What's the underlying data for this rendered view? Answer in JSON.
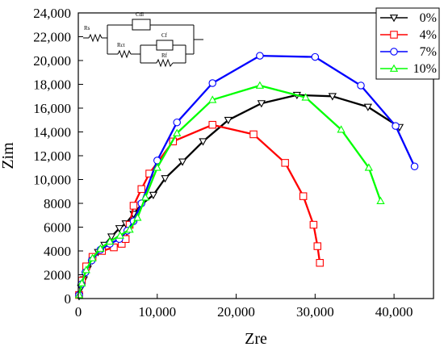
{
  "chart_data": {
    "type": "line",
    "title": "",
    "xlabel": "Zre",
    "ylabel": "Zim",
    "xlim": [
      0,
      45000
    ],
    "ylim": [
      0,
      24000
    ],
    "x_ticks": [
      0,
      10000,
      20000,
      30000,
      40000
    ],
    "x_tick_labels": [
      "0",
      "10,000",
      "20,000",
      "30,000",
      "40,000"
    ],
    "y_ticks": [
      0,
      2000,
      4000,
      6000,
      8000,
      10000,
      12000,
      14000,
      16000,
      18000,
      20000,
      22000,
      24000
    ],
    "y_tick_labels": [
      "0",
      "2000",
      "4000",
      "6000",
      "8000",
      "10,000",
      "12,000",
      "14,000",
      "16,000",
      "18,000",
      "20,000",
      "22,000",
      "24,000"
    ],
    "grid": false,
    "legend_position": "top-right",
    "series": [
      {
        "name": "0%",
        "color": "#000000",
        "marker": "triangle-down",
        "points": [
          [
            100,
            200
          ],
          [
            350,
            900
          ],
          [
            700,
            1600
          ],
          [
            1200,
            2500
          ],
          [
            1800,
            3200
          ],
          [
            2500,
            3900
          ],
          [
            3300,
            4500
          ],
          [
            4200,
            5200
          ],
          [
            5200,
            5900
          ],
          [
            6000,
            6300
          ],
          [
            7000,
            7100
          ],
          [
            8000,
            7900
          ],
          [
            9500,
            8700
          ],
          [
            11000,
            10100
          ],
          [
            13200,
            11500
          ],
          [
            15800,
            13200
          ],
          [
            19000,
            15000
          ],
          [
            23200,
            16400
          ],
          [
            27700,
            17100
          ],
          [
            32200,
            17000
          ],
          [
            36700,
            16100
          ],
          [
            40700,
            14400
          ]
        ]
      },
      {
        "name": "4%",
        "color": "#ff0000",
        "marker": "square",
        "points": [
          [
            100,
            300
          ],
          [
            450,
            1500
          ],
          [
            1000,
            2700
          ],
          [
            1800,
            3500
          ],
          [
            3000,
            4000
          ],
          [
            4500,
            4300
          ],
          [
            5500,
            4600
          ],
          [
            6000,
            5000
          ],
          [
            6500,
            6200
          ],
          [
            7000,
            7800
          ],
          [
            8000,
            9200
          ],
          [
            9000,
            10500
          ],
          [
            12000,
            13200
          ],
          [
            17000,
            14600
          ],
          [
            22200,
            13800
          ],
          [
            26200,
            11400
          ],
          [
            28500,
            8600
          ],
          [
            29800,
            6200
          ],
          [
            30300,
            4400
          ],
          [
            30600,
            3000
          ]
        ]
      },
      {
        "name": "7%",
        "color": "#0000ff",
        "marker": "circle",
        "points": [
          [
            100,
            300
          ],
          [
            400,
            1200
          ],
          [
            900,
            2200
          ],
          [
            1700,
            3200
          ],
          [
            2800,
            4100
          ],
          [
            4000,
            4600
          ],
          [
            5200,
            5000
          ],
          [
            6200,
            5700
          ],
          [
            7000,
            6500
          ],
          [
            8000,
            8000
          ],
          [
            10000,
            11600
          ],
          [
            12500,
            14800
          ],
          [
            17000,
            18100
          ],
          [
            23000,
            20400
          ],
          [
            30000,
            20300
          ],
          [
            35800,
            17900
          ],
          [
            40200,
            14500
          ],
          [
            42600,
            11100
          ]
        ]
      },
      {
        "name": "10%",
        "color": "#00ff00",
        "marker": "triangle-up",
        "points": [
          [
            100,
            300
          ],
          [
            450,
            1300
          ],
          [
            1000,
            2400
          ],
          [
            1800,
            3400
          ],
          [
            2800,
            4200
          ],
          [
            4000,
            4800
          ],
          [
            5300,
            5300
          ],
          [
            6500,
            5800
          ],
          [
            7500,
            6800
          ],
          [
            8500,
            8500
          ],
          [
            10000,
            11000
          ],
          [
            12500,
            13900
          ],
          [
            17000,
            16700
          ],
          [
            23000,
            17900
          ],
          [
            28800,
            16900
          ],
          [
            33300,
            14200
          ],
          [
            36800,
            11000
          ],
          [
            38300,
            8200
          ]
        ]
      }
    ],
    "circuit": {
      "labels": [
        "Rs",
        "Cdl",
        "Rct",
        "Cf",
        "Rf"
      ]
    }
  }
}
